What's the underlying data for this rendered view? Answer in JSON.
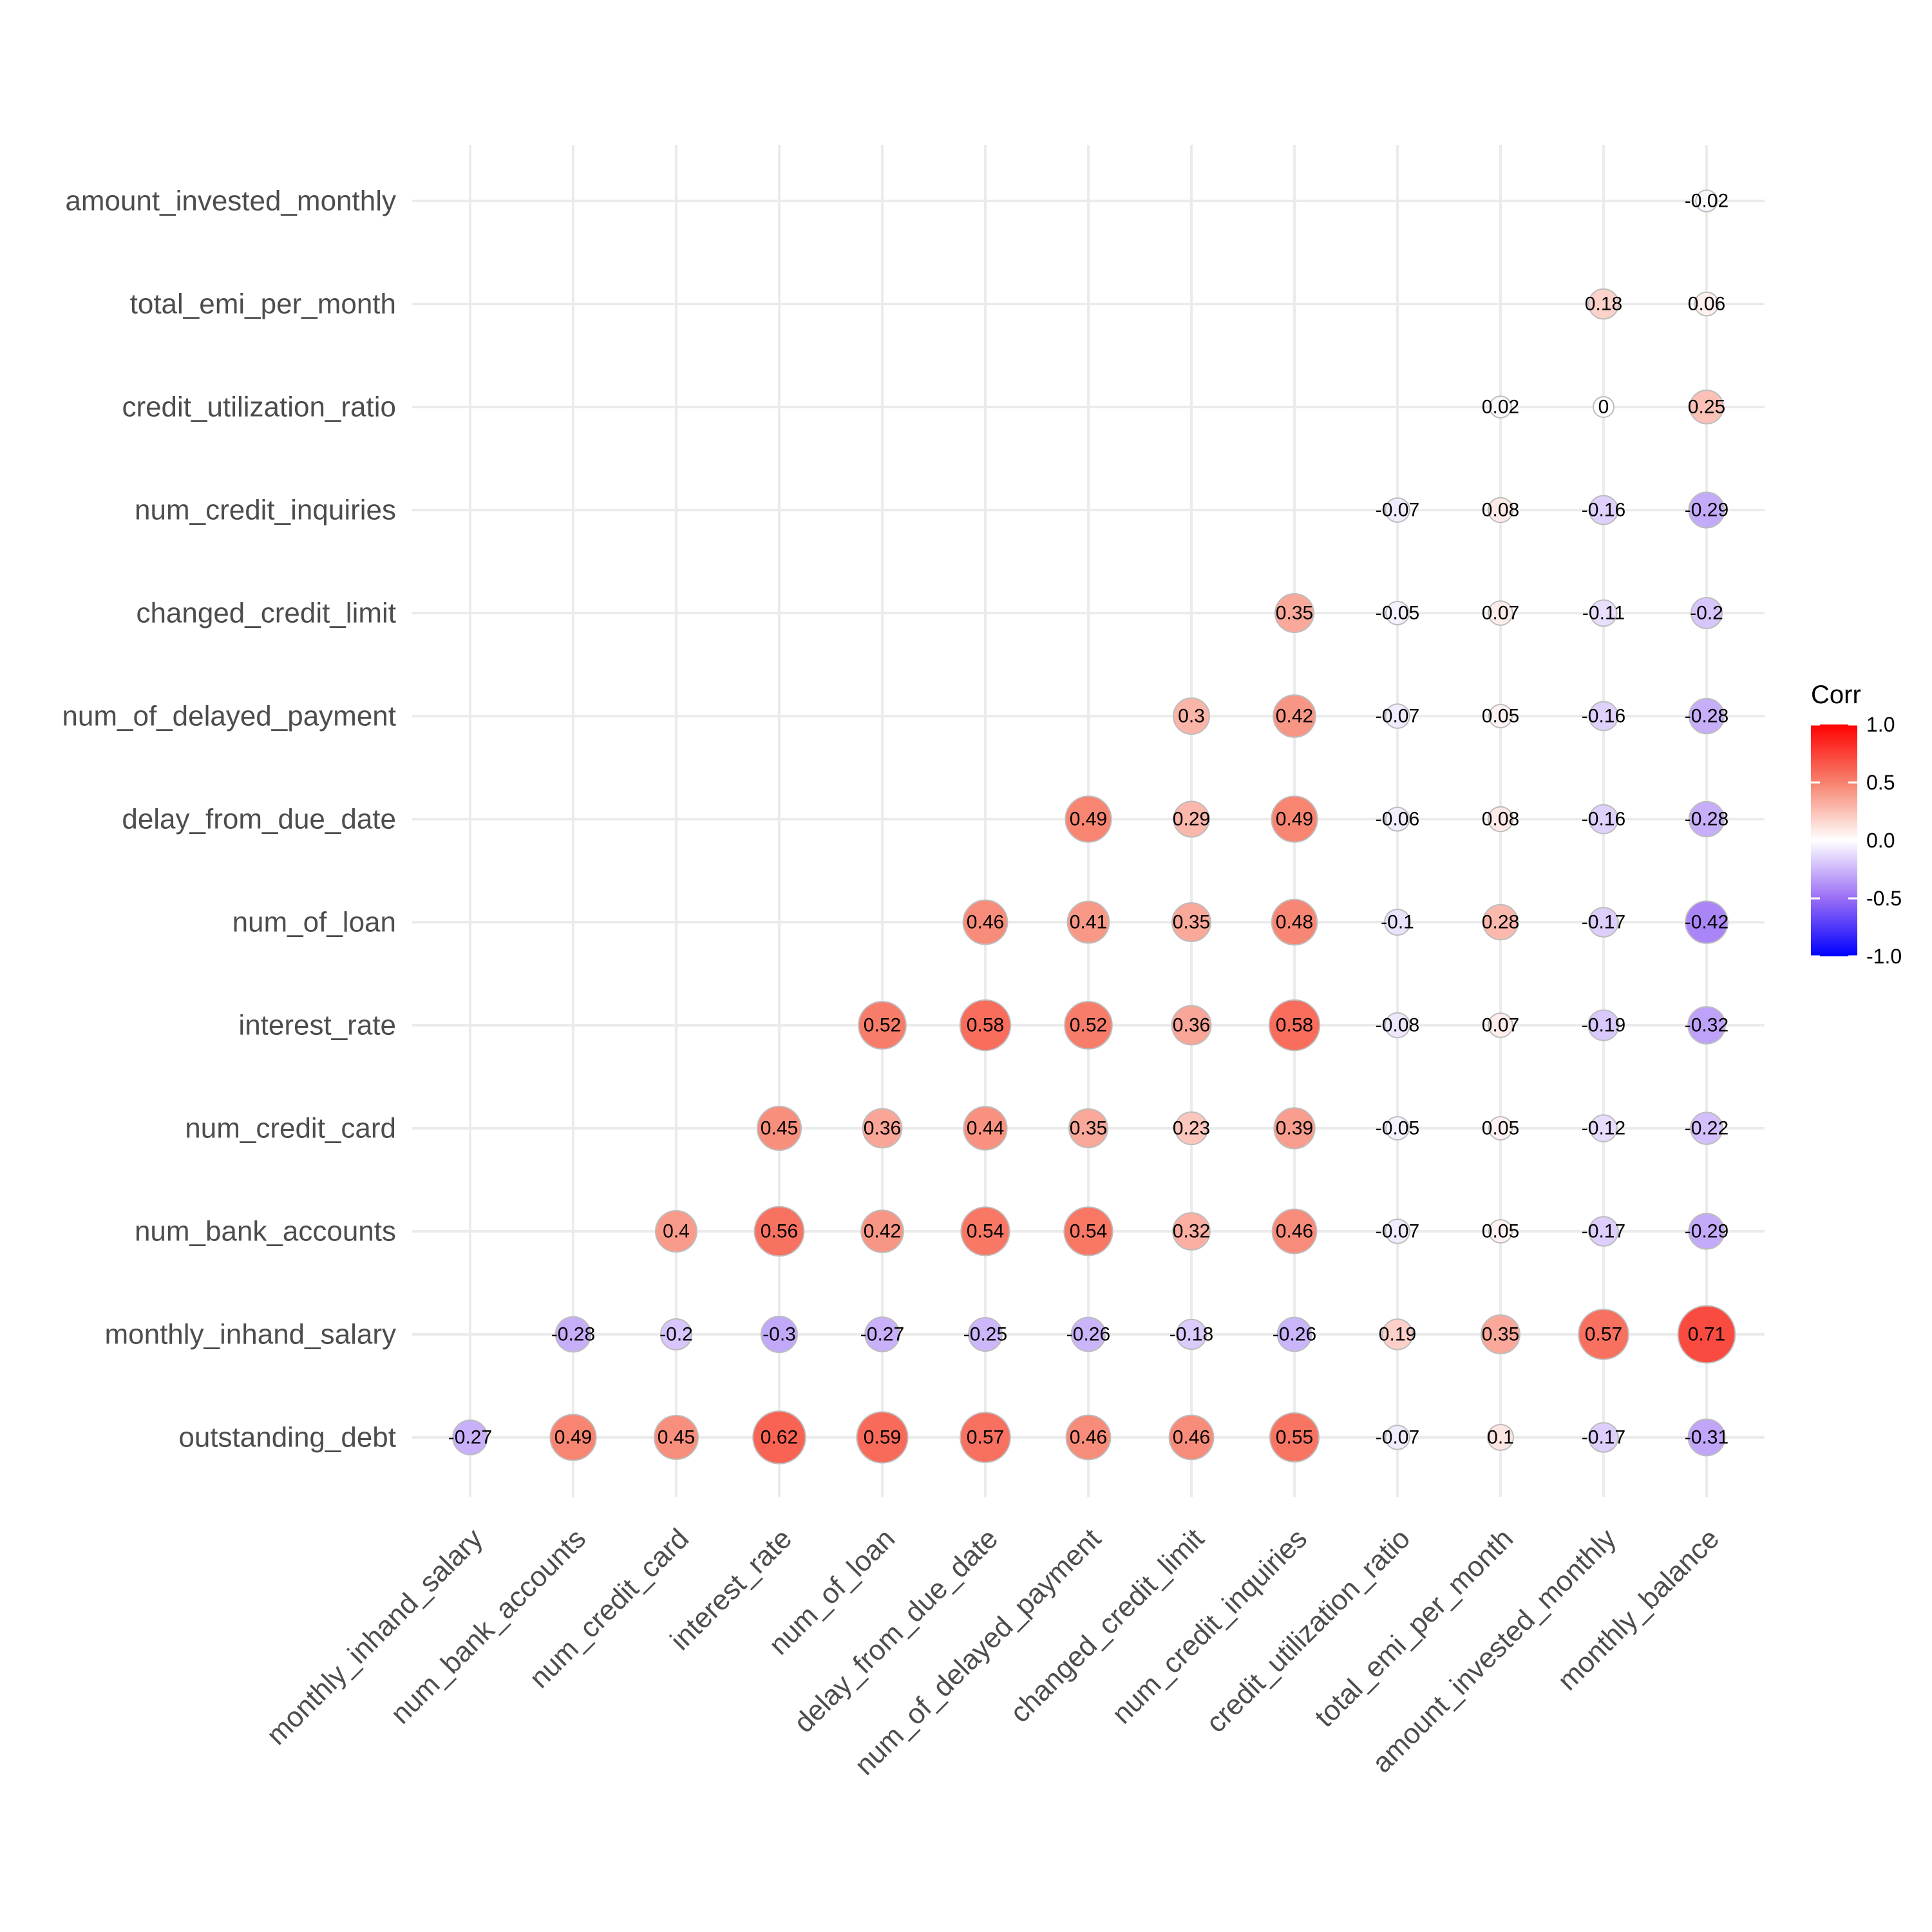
{
  "chart_data": {
    "type": "heatmap",
    "style": "circle-lower-triangle",
    "x_categories": [
      "monthly_inhand_salary",
      "num_bank_accounts",
      "num_credit_card",
      "interest_rate",
      "num_of_loan",
      "delay_from_due_date",
      "num_of_delayed_payment",
      "changed_credit_limit",
      "num_credit_inquiries",
      "credit_utilization_ratio",
      "total_emi_per_month",
      "amount_invested_monthly",
      "monthly_balance"
    ],
    "y_categories": [
      "outstanding_debt",
      "monthly_inhand_salary",
      "num_bank_accounts",
      "num_credit_card",
      "interest_rate",
      "num_of_loan",
      "delay_from_due_date",
      "num_of_delayed_payment",
      "changed_credit_limit",
      "num_credit_inquiries",
      "credit_utilization_ratio",
      "total_emi_per_month",
      "amount_invested_monthly"
    ],
    "rows": [
      {
        "y": "outstanding_debt",
        "values": [
          -0.27,
          0.49,
          0.45,
          0.62,
          0.59,
          0.57,
          0.46,
          0.46,
          0.55,
          -0.07,
          0.1,
          -0.17,
          -0.31
        ]
      },
      {
        "y": "monthly_inhand_salary",
        "values": [
          null,
          -0.28,
          -0.2,
          -0.3,
          -0.27,
          -0.25,
          -0.26,
          -0.18,
          -0.26,
          0.19,
          0.35,
          0.57,
          0.71
        ]
      },
      {
        "y": "num_bank_accounts",
        "values": [
          null,
          null,
          0.4,
          0.56,
          0.42,
          0.54,
          0.54,
          0.32,
          0.46,
          -0.07,
          0.05,
          -0.17,
          -0.29
        ]
      },
      {
        "y": "num_credit_card",
        "values": [
          null,
          null,
          null,
          0.45,
          0.36,
          0.44,
          0.35,
          0.23,
          0.39,
          -0.05,
          0.05,
          -0.12,
          -0.22
        ]
      },
      {
        "y": "interest_rate",
        "values": [
          null,
          null,
          null,
          null,
          0.52,
          0.58,
          0.52,
          0.36,
          0.58,
          -0.08,
          0.07,
          -0.19,
          -0.32
        ]
      },
      {
        "y": "num_of_loan",
        "values": [
          null,
          null,
          null,
          null,
          null,
          0.46,
          0.41,
          0.35,
          0.48,
          -0.1,
          0.28,
          -0.17,
          -0.42
        ]
      },
      {
        "y": "delay_from_due_date",
        "values": [
          null,
          null,
          null,
          null,
          null,
          null,
          0.49,
          0.29,
          0.49,
          -0.06,
          0.08,
          -0.16,
          -0.28
        ]
      },
      {
        "y": "num_of_delayed_payment",
        "values": [
          null,
          null,
          null,
          null,
          null,
          null,
          null,
          0.3,
          0.42,
          -0.07,
          0.05,
          -0.16,
          -0.28
        ]
      },
      {
        "y": "changed_credit_limit",
        "values": [
          null,
          null,
          null,
          null,
          null,
          null,
          null,
          null,
          0.35,
          -0.05,
          0.07,
          -0.11,
          -0.2
        ]
      },
      {
        "y": "num_credit_inquiries",
        "values": [
          null,
          null,
          null,
          null,
          null,
          null,
          null,
          null,
          null,
          -0.07,
          0.08,
          -0.16,
          -0.29
        ]
      },
      {
        "y": "credit_utilization_ratio",
        "values": [
          null,
          null,
          null,
          null,
          null,
          null,
          null,
          null,
          null,
          null,
          0.02,
          0,
          0.25
        ]
      },
      {
        "y": "total_emi_per_month",
        "values": [
          null,
          null,
          null,
          null,
          null,
          null,
          null,
          null,
          null,
          null,
          null,
          0.18,
          0.06
        ]
      },
      {
        "y": "amount_invested_monthly",
        "values": [
          null,
          null,
          null,
          null,
          null,
          null,
          null,
          null,
          null,
          null,
          null,
          null,
          -0.02
        ]
      }
    ],
    "legend": {
      "title": "Corr",
      "ticks": [
        "1.0",
        "0.5",
        "0.0",
        "-0.5",
        "-1.0"
      ],
      "range": [
        -1,
        1
      ],
      "position": "right"
    },
    "colors": {
      "low": "#0000ff",
      "mid": "#ffffff",
      "high": "#ff0000",
      "circle_border": "#bdbdbd",
      "grid": "#ebebeb"
    },
    "grid": true
  }
}
